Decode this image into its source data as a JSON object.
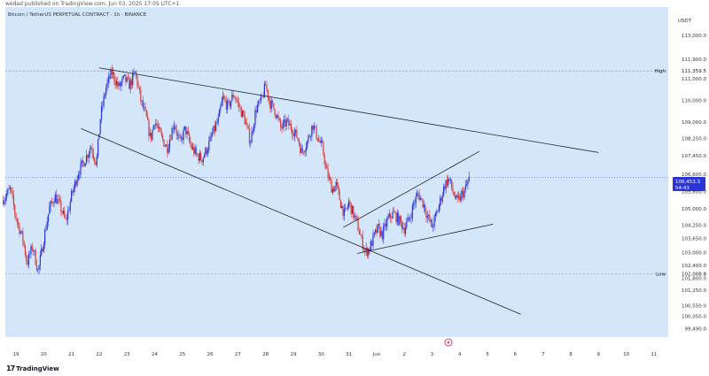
{
  "header": {
    "publish_line": "wedad published on TradingView.com, Jun 03, 2025 17:05 UTC+1"
  },
  "legend_line": "Bitcoin / TetherUS PERPETUAL CONTRACT · 1h · BINANCE",
  "currency_label": "USDT",
  "footer_brand": "TradingView",
  "colors": {
    "background": "#d4e6fa",
    "up_candle": "#2b35d6",
    "down_candle": "#d83a3a",
    "trendline": "#222222",
    "price_tag": "#2b35d6",
    "event_marker": "#e03c6c"
  },
  "chart_data": {
    "type": "candlestick",
    "price_axis": {
      "ylim": [
        99100,
        114300
      ],
      "ticks": [
        113000,
        111900,
        111000,
        110000,
        109000,
        108250,
        107450,
        106600,
        105800,
        105000,
        104250,
        103650,
        103000,
        102400,
        101800,
        101250,
        100550,
        100050,
        99490
      ],
      "tick_labels": [
        "113,000.0",
        "111,900.0",
        "111,000.0",
        "110,000.0",
        "109,000.0",
        "108,250.0",
        "107,450.0",
        "106,600.0",
        "105,800.0",
        "105,000.0",
        "104,250.0",
        "103,650.0",
        "103,000.0",
        "102,400.0",
        "101,800.0",
        "101,250.0",
        "100,550.0",
        "100,050.0",
        "99,490.0"
      ]
    },
    "time_axis": {
      "ticks": [
        0,
        1,
        2,
        3,
        4,
        5,
        6,
        7,
        8,
        9,
        10,
        11,
        12,
        13,
        14,
        15,
        16,
        17,
        18,
        19,
        20,
        21,
        22,
        23
      ],
      "tick_labels": [
        "19",
        "20",
        "21",
        "22",
        "23",
        "24",
        "25",
        "26",
        "27",
        "28",
        "29",
        "30",
        "31",
        "Jun",
        "2",
        "3",
        "4",
        "5",
        "6",
        "7",
        "8",
        "9",
        "10",
        "11"
      ]
    },
    "levels": [
      {
        "name": "High",
        "value": 111359.5,
        "value_label": "111,359.5"
      },
      {
        "name": "Low",
        "value": 102008.8,
        "value_label": "102,008.8"
      }
    ],
    "current_price": {
      "value": 106453.3,
      "value_label": "106,453.3",
      "countdown": "54:43"
    },
    "trendlines": [
      {
        "name": "channel-upper",
        "x1": 3.0,
        "y1": 111500,
        "x2": 21.0,
        "y2": 107600
      },
      {
        "name": "channel-lower",
        "x1": 2.35,
        "y1": 108700,
        "x2": 18.2,
        "y2": 100150
      },
      {
        "name": "wedge-upper",
        "x1": 11.8,
        "y1": 104150,
        "x2": 16.7,
        "y2": 107650
      },
      {
        "name": "wedge-lower",
        "x1": 12.3,
        "y1": 102950,
        "x2": 17.2,
        "y2": 104300
      }
    ],
    "price_path": [
      [
        -0.5,
        105400
      ],
      [
        -0.2,
        105900
      ],
      [
        0.0,
        104600
      ],
      [
        0.25,
        103600
      ],
      [
        0.4,
        102500
      ],
      [
        0.6,
        103300
      ],
      [
        0.8,
        102100
      ],
      [
        1.0,
        103600
      ],
      [
        1.2,
        105000
      ],
      [
        1.4,
        105600
      ],
      [
        1.6,
        105100
      ],
      [
        1.8,
        104400
      ],
      [
        2.0,
        105600
      ],
      [
        2.25,
        106700
      ],
      [
        2.5,
        107300
      ],
      [
        2.7,
        107900
      ],
      [
        2.9,
        107100
      ],
      [
        3.05,
        109300
      ],
      [
        3.25,
        110600
      ],
      [
        3.45,
        111300
      ],
      [
        3.7,
        110600
      ],
      [
        3.9,
        111000
      ],
      [
        4.1,
        110700
      ],
      [
        4.3,
        111300
      ],
      [
        4.5,
        110000
      ],
      [
        4.7,
        109200
      ],
      [
        4.85,
        108200
      ],
      [
        5.0,
        109100
      ],
      [
        5.2,
        108400
      ],
      [
        5.45,
        107800
      ],
      [
        5.7,
        109000
      ],
      [
        5.9,
        108000
      ],
      [
        6.1,
        108700
      ],
      [
        6.3,
        107900
      ],
      [
        6.5,
        107500
      ],
      [
        6.7,
        107300
      ],
      [
        6.9,
        107800
      ],
      [
        7.1,
        108500
      ],
      [
        7.3,
        109100
      ],
      [
        7.45,
        110100
      ],
      [
        7.65,
        109700
      ],
      [
        7.85,
        110300
      ],
      [
        8.05,
        109700
      ],
      [
        8.25,
        109100
      ],
      [
        8.45,
        108100
      ],
      [
        8.65,
        109600
      ],
      [
        8.85,
        110000
      ],
      [
        9.0,
        110700
      ],
      [
        9.15,
        109900
      ],
      [
        9.35,
        109500
      ],
      [
        9.55,
        108700
      ],
      [
        9.75,
        109000
      ],
      [
        9.95,
        108700
      ],
      [
        10.15,
        108300
      ],
      [
        10.3,
        107600
      ],
      [
        10.5,
        108100
      ],
      [
        10.7,
        108900
      ],
      [
        10.9,
        108200
      ],
      [
        11.05,
        107800
      ],
      [
        11.2,
        106700
      ],
      [
        11.4,
        105900
      ],
      [
        11.55,
        106100
      ],
      [
        11.7,
        105300
      ],
      [
        11.85,
        104700
      ],
      [
        12.0,
        105300
      ],
      [
        12.15,
        104800
      ],
      [
        12.3,
        104300
      ],
      [
        12.45,
        103600
      ],
      [
        12.6,
        103000
      ],
      [
        12.75,
        103200
      ],
      [
        12.9,
        103700
      ],
      [
        13.05,
        104100
      ],
      [
        13.2,
        103800
      ],
      [
        13.4,
        104500
      ],
      [
        13.6,
        104800
      ],
      [
        13.8,
        104500
      ],
      [
        14.0,
        104100
      ],
      [
        14.2,
        104600
      ],
      [
        14.35,
        105300
      ],
      [
        14.5,
        105700
      ],
      [
        14.7,
        105200
      ],
      [
        14.85,
        104600
      ],
      [
        15.0,
        104200
      ],
      [
        15.15,
        104700
      ],
      [
        15.3,
        105400
      ],
      [
        15.45,
        106100
      ],
      [
        15.6,
        106400
      ],
      [
        15.75,
        105800
      ],
      [
        15.9,
        105300
      ],
      [
        16.05,
        105600
      ],
      [
        16.2,
        105900
      ],
      [
        16.35,
        106453
      ]
    ]
  }
}
